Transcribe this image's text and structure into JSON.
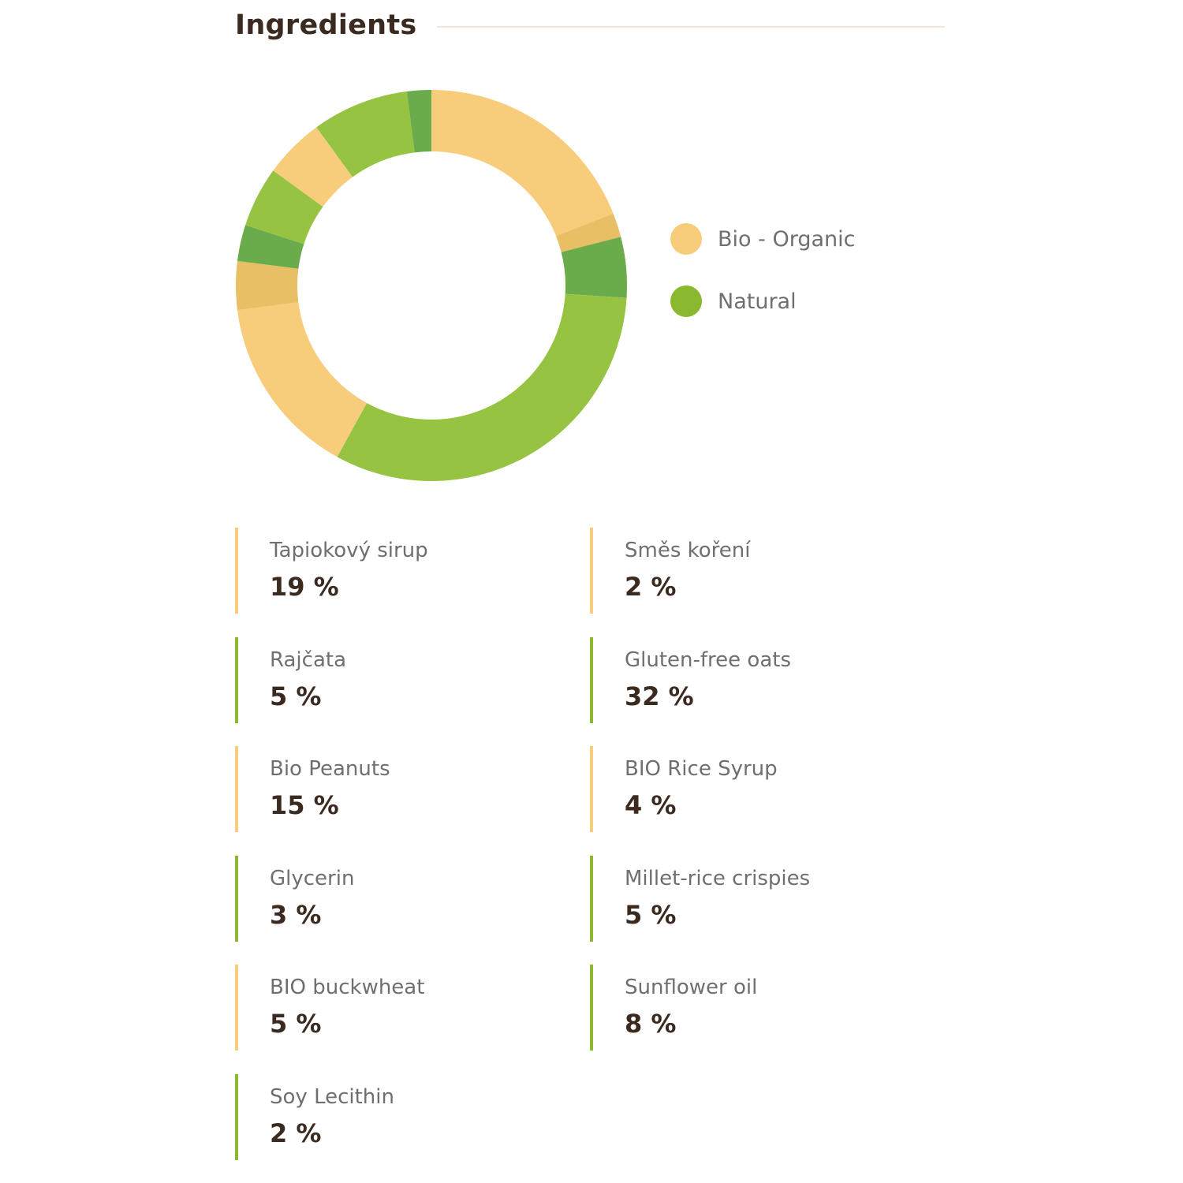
{
  "header": {
    "title": "Ingredients"
  },
  "colors": {
    "bio_organic": "#f7cc7a",
    "natural": "#8ab82f",
    "title_text": "#3b2a20",
    "label_text": "#6f6f6f",
    "rule": "#f2e6da"
  },
  "legend": [
    {
      "label": "Bio - Organic",
      "color": "#f7cc7a"
    },
    {
      "label": "Natural",
      "color": "#8ab82f"
    }
  ],
  "chart_data": {
    "type": "pie",
    "variant": "donut",
    "legend_position": "right",
    "slices": [
      {
        "label": "Tapiokový sirup",
        "value": 19,
        "category": "Bio - Organic",
        "color": "#f7cc7a"
      },
      {
        "label": "Směs koření",
        "value": 2,
        "category": "Bio - Organic",
        "color": "#e8bf64"
      },
      {
        "label": "Rajčata",
        "value": 5,
        "category": "Natural",
        "color": "#6aab4c"
      },
      {
        "label": "Gluten-free oats",
        "value": 32,
        "category": "Natural",
        "color": "#96c341"
      },
      {
        "label": "Bio Peanuts",
        "value": 15,
        "category": "Bio - Organic",
        "color": "#f7cc7a"
      },
      {
        "label": "BIO Rice Syrup",
        "value": 4,
        "category": "Bio - Organic",
        "color": "#e8bf64"
      },
      {
        "label": "Glycerin",
        "value": 3,
        "category": "Natural",
        "color": "#6aab4c"
      },
      {
        "label": "Millet-rice crispies",
        "value": 5,
        "category": "Natural",
        "color": "#96c341"
      },
      {
        "label": "BIO buckwheat",
        "value": 5,
        "category": "Bio - Organic",
        "color": "#f7cc7a"
      },
      {
        "label": "Sunflower oil",
        "value": 8,
        "category": "Natural",
        "color": "#96c341"
      },
      {
        "label": "Soy Lecithin",
        "value": 2,
        "category": "Natural",
        "color": "#6aab4c"
      }
    ]
  },
  "ingredients": [
    {
      "name": "Tapiokový sirup",
      "value": "19 %",
      "type": "bio"
    },
    {
      "name": "Směs koření",
      "value": "2 %",
      "type": "bio"
    },
    {
      "name": "Rajčata",
      "value": "5 %",
      "type": "natural"
    },
    {
      "name": "Gluten-free oats",
      "value": "32 %",
      "type": "natural"
    },
    {
      "name": "Bio Peanuts",
      "value": "15 %",
      "type": "bio"
    },
    {
      "name": "BIO Rice Syrup",
      "value": "4 %",
      "type": "bio"
    },
    {
      "name": "Glycerin",
      "value": "3 %",
      "type": "natural"
    },
    {
      "name": "Millet-rice crispies",
      "value": "5 %",
      "type": "natural"
    },
    {
      "name": "BIO buckwheat",
      "value": "5 %",
      "type": "bio"
    },
    {
      "name": "Sunflower oil",
      "value": "8 %",
      "type": "natural"
    },
    {
      "name": "Soy Lecithin",
      "value": "2 %",
      "type": "natural"
    }
  ]
}
